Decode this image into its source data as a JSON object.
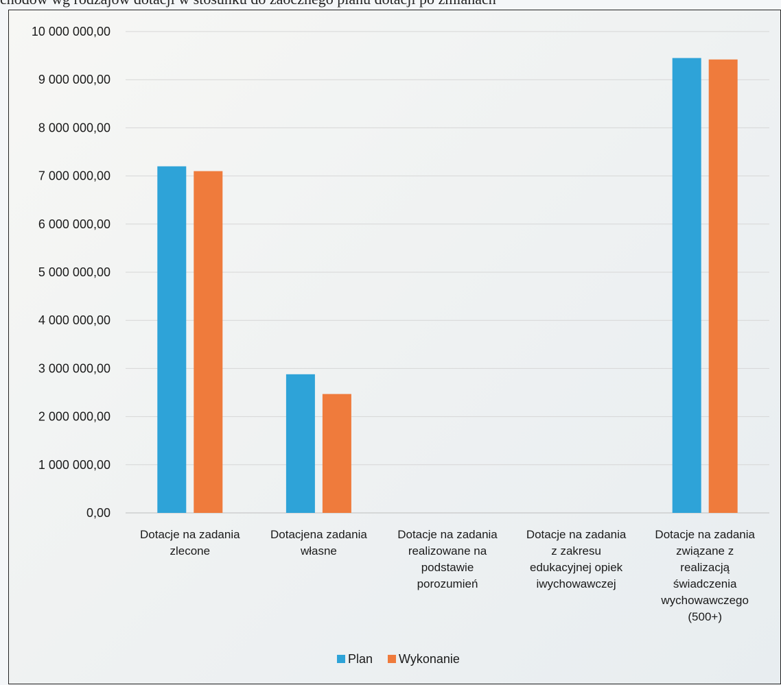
{
  "caption": "chodów wg rodzajów dotacji w stosunku do zaocznego planu dotacji po zmianach",
  "colors": {
    "plan": "#2ea3d8",
    "wykonanie": "#ef7b3c",
    "grid": "#d6d6d6",
    "axis": "#bdbdbd"
  },
  "chart_data": {
    "type": "bar",
    "ylim": [
      0,
      10000000
    ],
    "yticks": [
      0,
      1000000,
      2000000,
      3000000,
      4000000,
      5000000,
      6000000,
      7000000,
      8000000,
      9000000,
      10000000
    ],
    "ytick_labels": [
      "0,00",
      "1 000 000,00",
      "2 000 000,00",
      "3 000 000,00",
      "4 000 000,00",
      "5 000 000,00",
      "6 000 000,00",
      "7 000 000,00",
      "8 000 000,00",
      "9 000 000,00",
      "10 000 000,00"
    ],
    "categories": [
      [
        "Dotacje na zadania",
        "zlecone"
      ],
      [
        "Dotacjena zadania",
        "własne"
      ],
      [
        "Dotacje na zadania",
        "realizowane na",
        "podstawie",
        "porozumień"
      ],
      [
        "Dotacje na zadania",
        "z zakresu",
        "edukacyjnej  opiek",
        "iwychowawczej"
      ],
      [
        "Dotacje na zadania",
        "związane z",
        "realizacją",
        "świadczenia",
        "wychowawczego",
        "(500+)"
      ]
    ],
    "series": [
      {
        "name": "Plan",
        "values": [
          7200000,
          2880000,
          0,
          0,
          9450000
        ]
      },
      {
        "name": "Wykonanie",
        "values": [
          7100000,
          2470000,
          0,
          0,
          9420000
        ]
      }
    ],
    "grid": true,
    "legend": "bottom"
  }
}
